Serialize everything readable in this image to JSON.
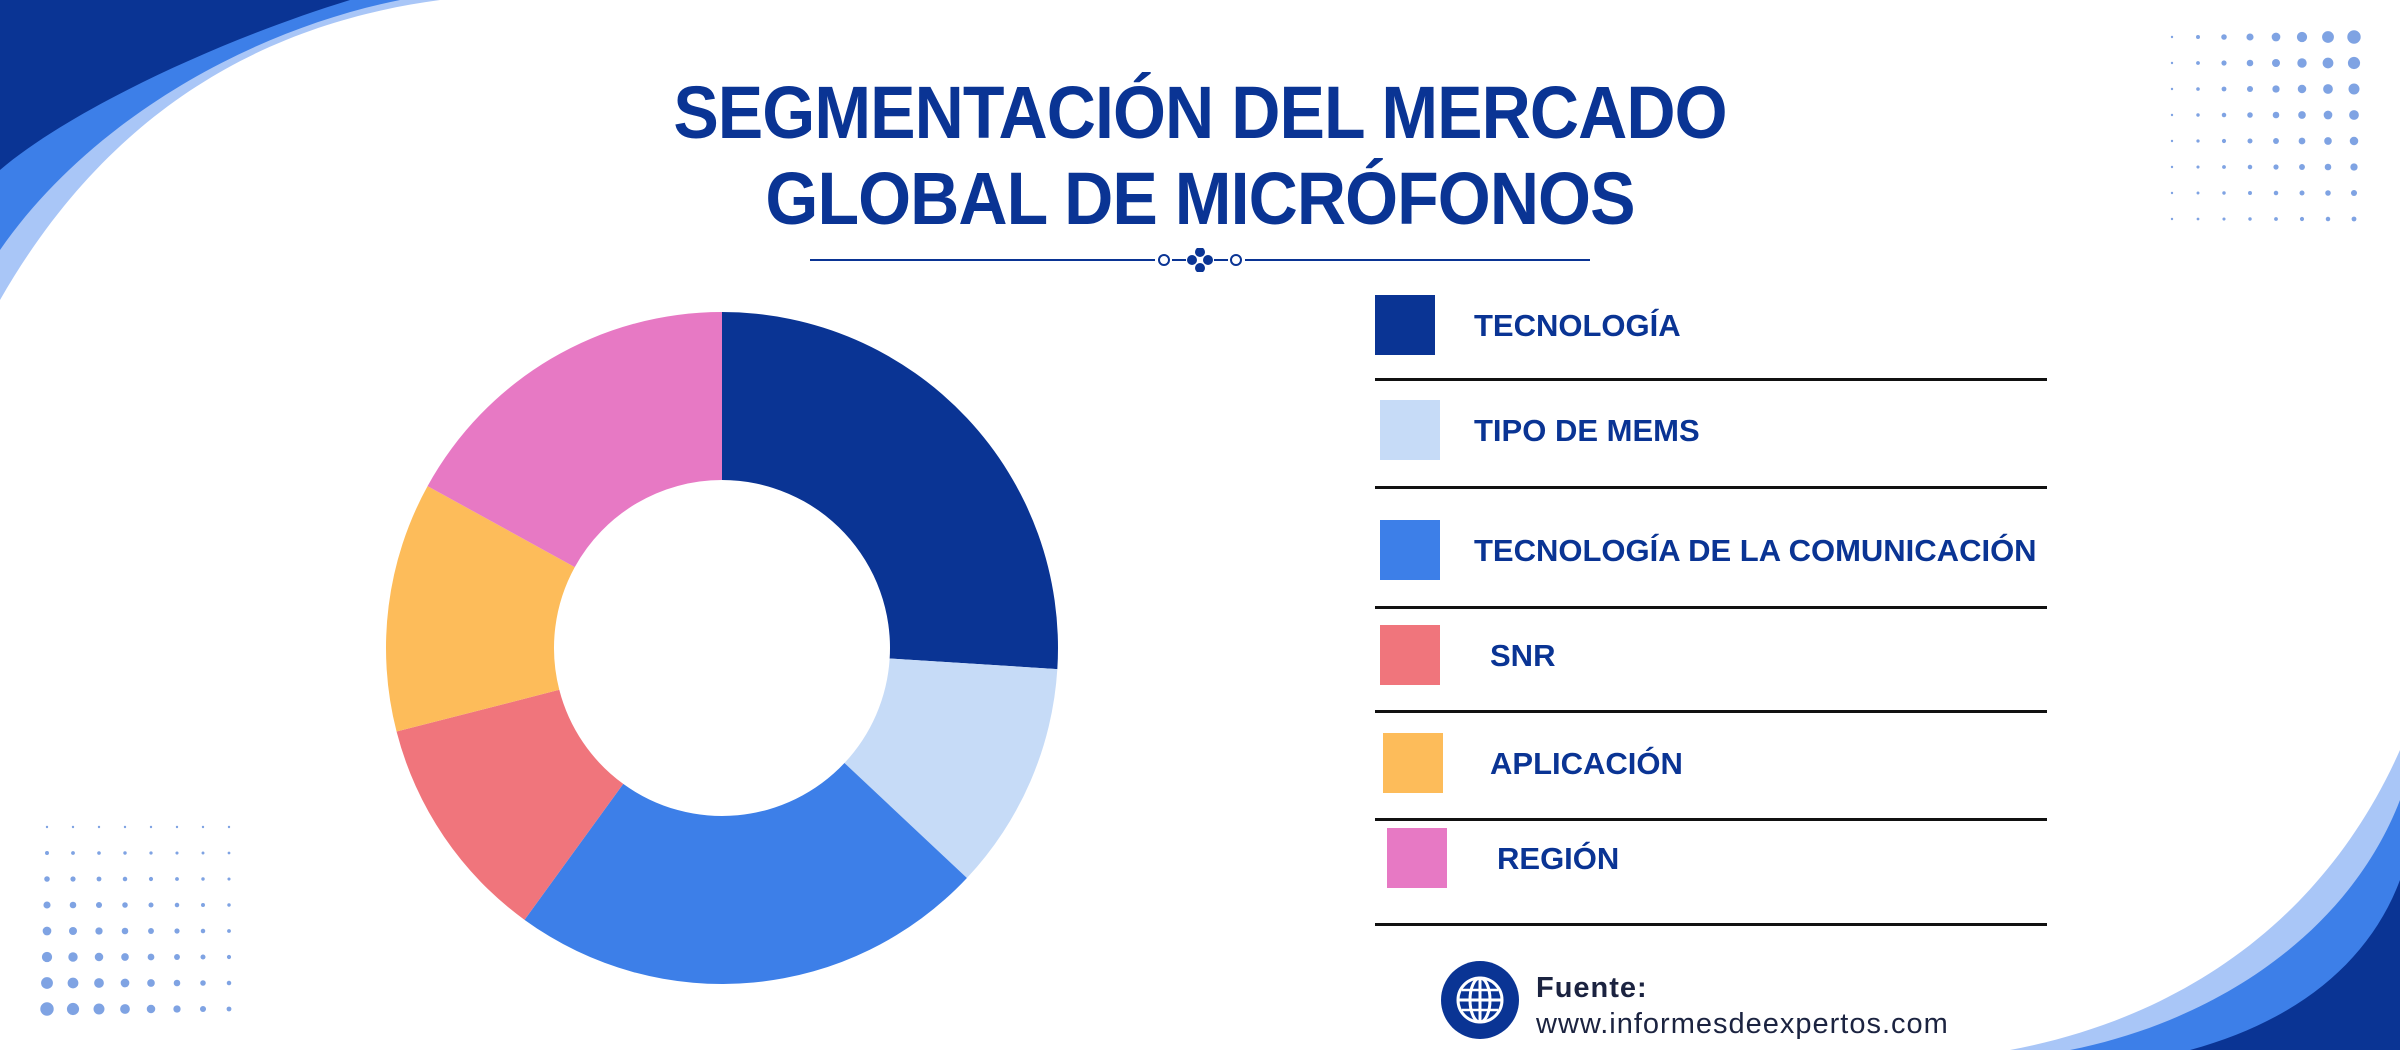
{
  "title": {
    "line1": "SEGMENTACIÓN DEL MERCADO",
    "line2": "GLOBAL DE MICRÓFONOS"
  },
  "colors": {
    "primary": "#0a3494",
    "accent_blue": "#3d7fe8",
    "light_blue": "#c6dbf7",
    "coral": "#f0757c",
    "amber": "#fdbc5a",
    "pink": "#e779c4"
  },
  "chart_data": {
    "type": "pie",
    "hole": 0.5,
    "categories": [
      "TECNOLOGÍA",
      "TIPO DE MEMS",
      "TECNOLOGÍA DE LA COMUNICACIÓN",
      "SNR",
      "APLICACIÓN",
      "REGIÓN"
    ],
    "values": [
      26,
      11,
      23,
      11,
      12,
      17
    ],
    "colors": [
      "#0a3494",
      "#c6dbf7",
      "#3d7fe8",
      "#f0757c",
      "#fdbc5a",
      "#e779c4"
    ],
    "legend_position": "right"
  },
  "legend": [
    {
      "label": "TECNOLOGÍA",
      "color": "#0a3494"
    },
    {
      "label": "TIPO DE MEMS",
      "color": "#c6dbf7"
    },
    {
      "label": "TECNOLOGÍA DE LA COMUNICACIÓN",
      "color": "#3d7fe8"
    },
    {
      "label": "SNR",
      "color": "#f0757c"
    },
    {
      "label": "APLICACIÓN",
      "color": "#fdbc5a"
    },
    {
      "label": "REGIÓN",
      "color": "#e779c4"
    }
  ],
  "source": {
    "icon": "globe-icon",
    "label": "Fuente:",
    "url": "www.informesdeexpertos.com"
  }
}
